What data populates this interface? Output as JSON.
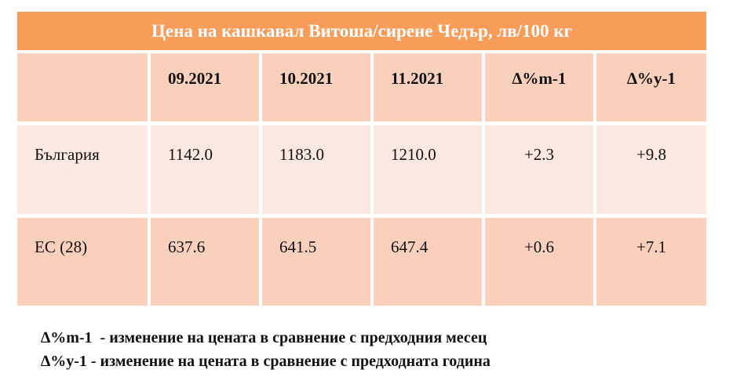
{
  "table": {
    "title": "Цена на кашкавал Витоша/сирене Чедър, лв/100 кг",
    "header": [
      "",
      "09.2021",
      "10.2021",
      "11.2021",
      "∆%m-1",
      "∆%y-1"
    ],
    "rows": [
      [
        "България",
        "1142.0",
        "1183.0",
        "1210.0",
        "+2.3",
        "+9.8"
      ],
      [
        "ЕС (28)",
        "637.6",
        "641.5",
        "647.4",
        "+0.6",
        "+7.1"
      ]
    ]
  },
  "notes": [
    "∆%m-1  - изменение на цената в сравнение с предходния месец",
    "∆%y-1 - изменение на цената в сравнение с предходната година"
  ]
}
